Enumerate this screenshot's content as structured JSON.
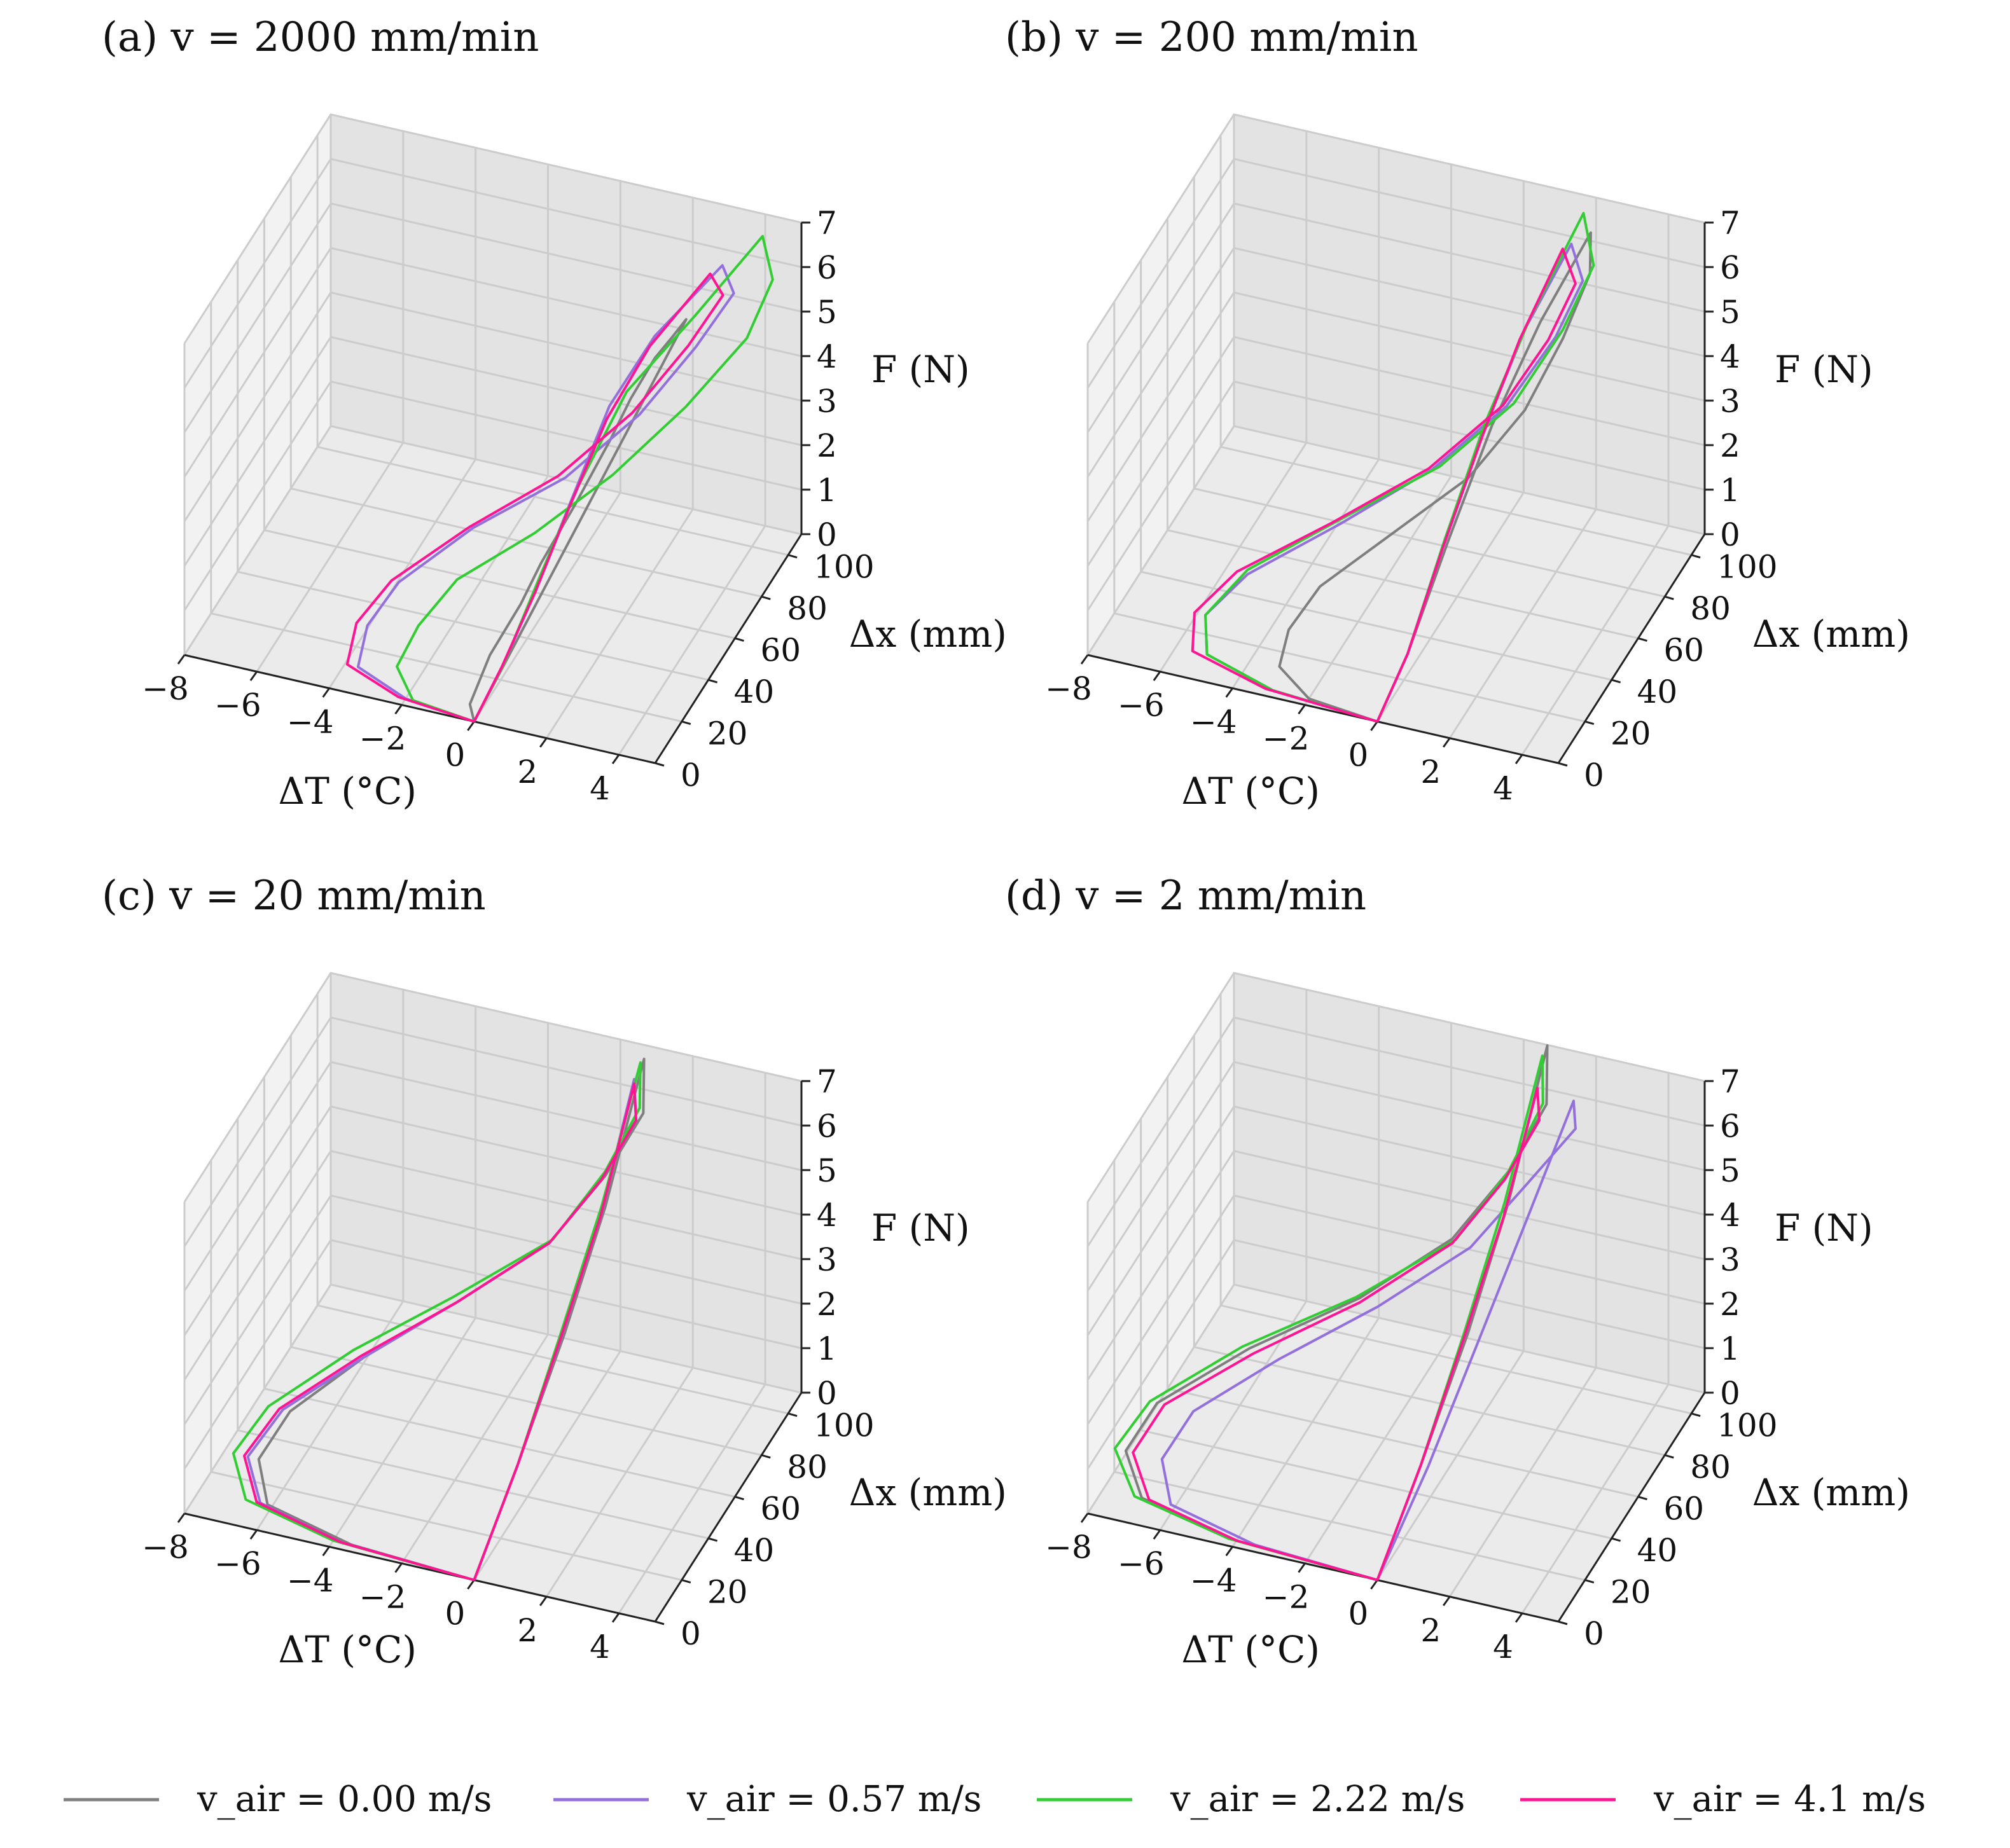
{
  "chart_data": [
    {
      "type": "line",
      "panel_label": "(a)",
      "title": "v = 2000 mm/min",
      "xlabel": "ΔT (°C)",
      "ylabel": "Δx (mm)",
      "zlabel": "F (N)",
      "xlim": [
        -8,
        5
      ],
      "ylim": [
        0,
        110
      ],
      "zlim": [
        0,
        7
      ],
      "x_ticks": [
        "−8",
        "−6",
        "−4",
        "−2",
        "0",
        "2",
        "4"
      ],
      "y_ticks": [
        "0",
        "20",
        "40",
        "60",
        "80",
        "100"
      ],
      "z_ticks": [
        "0",
        "1",
        "2",
        "3",
        "4",
        "5",
        "6",
        "7"
      ],
      "series": [
        {
          "name": "v_air = 0.00 m/s",
          "dT": [
            0,
            -0.3,
            -0.3,
            0,
            0.2,
            0.6,
            1.0,
            1.2,
            1.5,
            1.8,
            2.0,
            0
          ],
          "dx": [
            0,
            5,
            20,
            35,
            45,
            60,
            75,
            85,
            95,
            100,
            105,
            0
          ],
          "F": [
            0,
            0.1,
            0.5,
            1.0,
            1.5,
            2.2,
            3.0,
            3.5,
            4.0,
            4.3,
            4.5,
            0
          ]
        },
        {
          "name": "v_air = 0.57 m/s",
          "dT": [
            0,
            -2.0,
            -3.5,
            -3.5,
            -3.0,
            -1.5,
            0.5,
            2.0,
            3.0,
            3.5,
            3.0,
            1.5,
            0.8,
            0.5,
            0.3,
            0.1,
            0
          ],
          "dx": [
            0,
            3,
            8,
            15,
            25,
            40,
            55,
            70,
            85,
            100,
            105,
            95,
            80,
            60,
            40,
            20,
            0
          ],
          "F": [
            0,
            0.0,
            0.2,
            0.8,
            1.4,
            2.2,
            3.0,
            4.0,
            5.0,
            5.6,
            5.9,
            4.5,
            3.5,
            2.3,
            1.3,
            0.4,
            0
          ]
        },
        {
          "name": "v_air = 2.22 m/s",
          "dT": [
            0,
            -1.8,
            -2.5,
            -2.2,
            -1.5,
            0.2,
            1.8,
            3.2,
            4.3,
            4.5,
            4.0,
            2.5,
            1.2,
            0.6,
            0.3,
            0.1,
            0
          ],
          "dx": [
            0,
            3,
            10,
            18,
            28,
            40,
            55,
            72,
            88,
            102,
            108,
            98,
            82,
            62,
            42,
            20,
            0
          ],
          "F": [
            0,
            0.0,
            0.3,
            0.9,
            1.6,
            2.4,
            3.3,
            4.3,
            5.3,
            6.0,
            6.6,
            5.0,
            3.8,
            2.5,
            1.4,
            0.4,
            0
          ]
        },
        {
          "name": "v_air = 4.1 m/s",
          "dT": [
            0,
            -2.2,
            -3.8,
            -3.8,
            -3.2,
            -1.6,
            0.3,
            1.8,
            2.8,
            3.2,
            2.7,
            1.4,
            0.8,
            0.5,
            0.3,
            0.1,
            0
          ],
          "dx": [
            0,
            3,
            8,
            15,
            25,
            40,
            55,
            70,
            85,
            100,
            104,
            94,
            78,
            58,
            38,
            18,
            0
          ],
          "F": [
            0,
            0.0,
            0.2,
            0.8,
            1.4,
            2.2,
            3.0,
            4.0,
            5.0,
            5.5,
            5.7,
            4.3,
            3.3,
            2.2,
            1.2,
            0.4,
            0
          ]
        }
      ]
    },
    {
      "type": "line",
      "panel_label": "(b)",
      "title": "v = 200 mm/min",
      "xlabel": "ΔT (°C)",
      "ylabel": "Δx (mm)",
      "zlabel": "F (N)",
      "xlim": [
        -8,
        5
      ],
      "ylim": [
        0,
        110
      ],
      "zlim": [
        0,
        7
      ],
      "x_ticks": [
        "−8",
        "−6",
        "−4",
        "−2",
        "0",
        "2",
        "4"
      ],
      "y_ticks": [
        "0",
        "20",
        "40",
        "60",
        "80",
        "100"
      ],
      "z_ticks": [
        "0",
        "1",
        "2",
        "3",
        "4",
        "5",
        "6",
        "7"
      ],
      "series": [
        {
          "name": "v_air = 0.00 m/s",
          "dT": [
            0,
            -2.0,
            -3.0,
            -3.0,
            -2.5,
            -1.0,
            0.5,
            1.5,
            2.0,
            2.2,
            2.0,
            1.2,
            0.6,
            0.3,
            0.1,
            0
          ],
          "dx": [
            0,
            3,
            8,
            15,
            25,
            40,
            55,
            70,
            85,
            100,
            106,
            90,
            70,
            45,
            20,
            0
          ],
          "F": [
            0,
            0.0,
            0.3,
            0.8,
            1.4,
            2.2,
            3.0,
            4.0,
            5.0,
            5.8,
            6.4,
            5.0,
            3.5,
            2.0,
            0.6,
            0
          ]
        },
        {
          "name": "v_air = 0.57 m/s",
          "dT": [
            0,
            -3.0,
            -5.0,
            -5.3,
            -4.5,
            -2.5,
            -0.5,
            1.0,
            1.8,
            2.0,
            1.5,
            0.8,
            0.4,
            0.2,
            0.1,
            0
          ],
          "dx": [
            0,
            3,
            8,
            15,
            25,
            40,
            55,
            70,
            85,
            100,
            105,
            90,
            70,
            45,
            20,
            0
          ],
          "F": [
            0,
            0.0,
            0.2,
            0.7,
            1.3,
            2.1,
            3.0,
            4.0,
            5.0,
            5.6,
            6.1,
            4.8,
            3.4,
            2.0,
            0.6,
            0
          ]
        },
        {
          "name": "v_air = 2.22 m/s",
          "dT": [
            0,
            -3.0,
            -5.0,
            -5.3,
            -4.5,
            -2.5,
            -0.3,
            1.2,
            2.0,
            2.3,
            1.8,
            0.9,
            0.4,
            0.2,
            0.1,
            0
          ],
          "dx": [
            0,
            3,
            8,
            15,
            25,
            40,
            55,
            70,
            85,
            100,
            106,
            90,
            70,
            45,
            20,
            0
          ],
          "F": [
            0,
            0.0,
            0.2,
            0.7,
            1.4,
            2.2,
            3.1,
            4.1,
            5.2,
            6.0,
            6.8,
            5.0,
            3.5,
            2.0,
            0.6,
            0
          ]
        },
        {
          "name": "v_air = 4.1 m/s",
          "dT": [
            0,
            -3.2,
            -5.4,
            -5.6,
            -4.8,
            -2.7,
            -0.6,
            0.9,
            1.6,
            1.8,
            1.3,
            0.7,
            0.4,
            0.2,
            0.1,
            0
          ],
          "dx": [
            0,
            3,
            8,
            15,
            25,
            40,
            55,
            70,
            85,
            100,
            104,
            88,
            68,
            44,
            20,
            0
          ],
          "F": [
            0,
            0.0,
            0.2,
            0.7,
            1.3,
            2.1,
            3.0,
            4.0,
            4.9,
            5.5,
            6.0,
            4.6,
            3.3,
            1.9,
            0.6,
            0
          ]
        }
      ]
    },
    {
      "type": "line",
      "panel_label": "(c)",
      "title": "v = 20 mm/min",
      "xlabel": "ΔT (°C)",
      "ylabel": "Δx (mm)",
      "zlabel": "F (N)",
      "xlim": [
        -8,
        5
      ],
      "ylim": [
        0,
        110
      ],
      "zlim": [
        0,
        7
      ],
      "x_ticks": [
        "−8",
        "−6",
        "−4",
        "−2",
        "0",
        "2",
        "4"
      ],
      "y_ticks": [
        "0",
        "20",
        "40",
        "60",
        "80",
        "100"
      ],
      "z_ticks": [
        "0",
        "1",
        "2",
        "3",
        "4",
        "5",
        "6",
        "7"
      ],
      "series": [
        {
          "name": "v_air = 0.00 m/s",
          "dT": [
            0,
            -3.5,
            -6.0,
            -6.5,
            -6.0,
            -4.5,
            -2.5,
            -0.5,
            0.5,
            1.0,
            0.8,
            0.5,
            0.3,
            0.1,
            0
          ],
          "dx": [
            0,
            3,
            8,
            15,
            25,
            40,
            55,
            70,
            85,
            100,
            106,
            85,
            60,
            30,
            0
          ],
          "F": [
            0,
            0.0,
            0.2,
            0.8,
            1.5,
            2.3,
            3.2,
            4.2,
            5.2,
            6.0,
            6.9,
            4.5,
            2.8,
            1.2,
            0
          ]
        },
        {
          "name": "v_air = 0.57 m/s",
          "dT": [
            0,
            -3.8,
            -6.2,
            -6.8,
            -6.2,
            -4.5,
            -2.5,
            -0.5,
            0.4,
            0.8,
            0.6,
            0.4,
            0.2,
            0.1,
            0
          ],
          "dx": [
            0,
            3,
            8,
            15,
            25,
            40,
            55,
            70,
            85,
            100,
            104,
            84,
            60,
            30,
            0
          ],
          "F": [
            0,
            0.0,
            0.2,
            0.8,
            1.5,
            2.3,
            3.2,
            4.2,
            5.1,
            5.8,
            6.5,
            4.3,
            2.7,
            1.2,
            0
          ]
        },
        {
          "name": "v_air = 2.22 m/s",
          "dT": [
            0,
            -4.0,
            -6.6,
            -7.2,
            -6.6,
            -4.8,
            -2.6,
            -0.4,
            0.5,
            0.9,
            0.7,
            0.4,
            0.2,
            0.1,
            0
          ],
          "dx": [
            0,
            3,
            8,
            15,
            25,
            40,
            55,
            70,
            85,
            100,
            106,
            85,
            60,
            30,
            0
          ],
          "F": [
            0,
            0.0,
            0.2,
            0.8,
            1.5,
            2.4,
            3.3,
            4.3,
            5.3,
            6.1,
            6.8,
            4.5,
            2.8,
            1.2,
            0
          ]
        },
        {
          "name": "v_air = 4.1 m/s",
          "dT": [
            0,
            -3.8,
            -6.3,
            -6.9,
            -6.3,
            -4.6,
            -2.5,
            -0.5,
            0.4,
            0.8,
            0.6,
            0.4,
            0.2,
            0.1,
            0
          ],
          "dx": [
            0,
            3,
            8,
            15,
            25,
            40,
            55,
            70,
            85,
            100,
            104,
            84,
            60,
            30,
            0
          ],
          "F": [
            0,
            0.0,
            0.2,
            0.8,
            1.5,
            2.3,
            3.2,
            4.2,
            5.1,
            5.8,
            6.4,
            4.3,
            2.7,
            1.2,
            0
          ]
        }
      ]
    },
    {
      "type": "line",
      "panel_label": "(d)",
      "title": "v = 2 mm/min",
      "xlabel": "ΔT (°C)",
      "ylabel": "Δx (mm)",
      "zlabel": "F (N)",
      "xlim": [
        -8,
        5
      ],
      "ylim": [
        0,
        110
      ],
      "zlim": [
        0,
        7
      ],
      "x_ticks": [
        "−8",
        "−6",
        "−4",
        "−2",
        "0",
        "2",
        "4"
      ],
      "y_ticks": [
        "0",
        "20",
        "40",
        "60",
        "80",
        "100"
      ],
      "z_ticks": [
        "0",
        "1",
        "2",
        "3",
        "4",
        "5",
        "6",
        "7"
      ],
      "series": [
        {
          "name": "v_air = 0.00 m/s",
          "dT": [
            0,
            -4.0,
            -6.8,
            -7.5,
            -7.0,
            -5.0,
            -2.5,
            -0.5,
            0.5,
            1.0,
            0.8,
            0.5,
            0.3,
            0.1,
            0
          ],
          "dx": [
            0,
            3,
            8,
            15,
            25,
            40,
            55,
            70,
            85,
            100,
            106,
            85,
            60,
            30,
            0
          ],
          "F": [
            0,
            0.0,
            0.2,
            0.8,
            1.5,
            2.4,
            3.3,
            4.3,
            5.3,
            6.2,
            7.2,
            4.6,
            2.8,
            1.2,
            0
          ]
        },
        {
          "name": "v_air = 0.57 m/s",
          "dT": [
            0,
            -3.5,
            -6.0,
            -6.5,
            -6.0,
            -4.2,
            -2.0,
            0.0,
            1.0,
            1.8,
            1.6,
            1.0,
            0.6,
            0.3,
            0
          ],
          "dx": [
            0,
            3,
            8,
            15,
            25,
            40,
            55,
            70,
            85,
            100,
            104,
            85,
            60,
            30,
            0
          ],
          "F": [
            0,
            0.0,
            0.2,
            0.8,
            1.5,
            2.3,
            3.2,
            4.2,
            5.1,
            5.8,
            6.2,
            4.3,
            2.7,
            1.2,
            0
          ]
        },
        {
          "name": "v_air = 2.22 m/s",
          "dT": [
            0,
            -4.2,
            -7.0,
            -7.8,
            -7.2,
            -5.2,
            -2.6,
            -0.4,
            0.5,
            0.9,
            0.7,
            0.4,
            0.2,
            0.1,
            0
          ],
          "dx": [
            0,
            3,
            8,
            15,
            25,
            40,
            55,
            70,
            85,
            100,
            105,
            85,
            60,
            30,
            0
          ],
          "F": [
            0,
            0.0,
            0.2,
            0.8,
            1.5,
            2.4,
            3.3,
            4.3,
            5.3,
            6.2,
            7.0,
            4.6,
            2.8,
            1.2,
            0
          ]
        },
        {
          "name": "v_air = 4.1 m/s",
          "dT": [
            0,
            -4.0,
            -6.6,
            -7.3,
            -6.8,
            -4.9,
            -2.5,
            -0.5,
            0.4,
            0.8,
            0.6,
            0.4,
            0.2,
            0.1,
            0
          ],
          "dx": [
            0,
            3,
            8,
            15,
            25,
            40,
            55,
            70,
            85,
            100,
            104,
            84,
            60,
            30,
            0
          ],
          "F": [
            0,
            0.0,
            0.2,
            0.8,
            1.5,
            2.3,
            3.2,
            4.2,
            5.1,
            5.8,
            6.3,
            4.3,
            2.7,
            1.2,
            0
          ]
        }
      ]
    }
  ],
  "legend": [
    {
      "label": "v_air = 0.00 m/s",
      "color": "#7f7f7f"
    },
    {
      "label": "v_air = 0.57 m/s",
      "color": "#9370db"
    },
    {
      "label": "v_air = 2.22 m/s",
      "color": "#32cd32"
    },
    {
      "label": "v_air = 4.1 m/s",
      "color": "#ff1493"
    }
  ]
}
